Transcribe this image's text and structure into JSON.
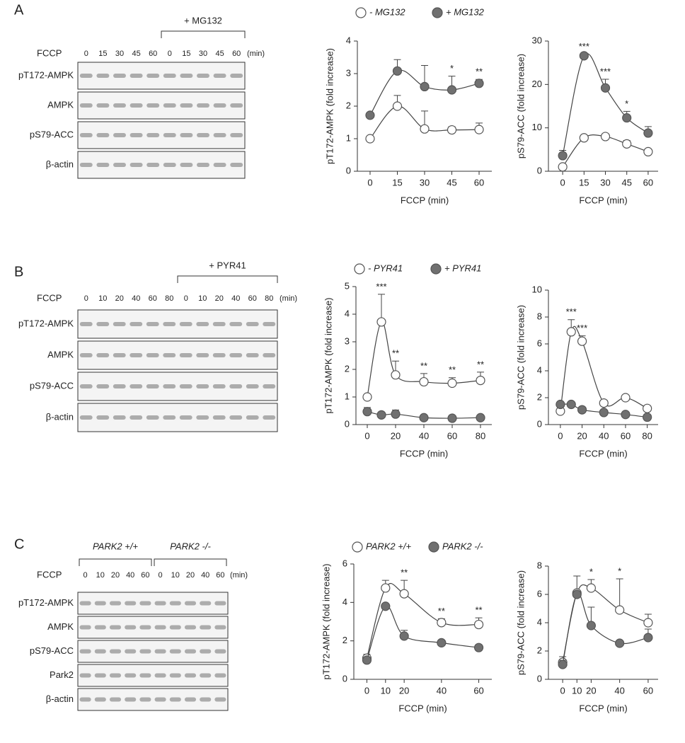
{
  "blots": [
    {
      "panel_label": "A",
      "treatment": "+ MG132",
      "fccp_label": "FCCP",
      "unit": "(min)",
      "lanes": [
        "0",
        "15",
        "30",
        "45",
        "60",
        "0",
        "15",
        "30",
        "45",
        "60"
      ],
      "rows": [
        "pT172-AMPK",
        "AMPK",
        "pS79-ACC",
        "β-actin"
      ]
    },
    {
      "panel_label": "B",
      "treatment": "+ PYR41",
      "fccp_label": "FCCP",
      "unit": "(min)",
      "lanes": [
        "0",
        "10",
        "20",
        "40",
        "60",
        "80",
        "0",
        "10",
        "20",
        "40",
        "60",
        "80"
      ],
      "rows": [
        "pT172-AMPK",
        "AMPK",
        "pS79-ACC",
        "β-actin"
      ]
    },
    {
      "panel_label": "C",
      "groups": [
        "PARK2 +/+",
        "PARK2 -/-"
      ],
      "fccp_label": "FCCP",
      "unit": "(min)",
      "lanes": [
        "0",
        "10",
        "20",
        "40",
        "60",
        "0",
        "10",
        "20",
        "40",
        "60"
      ],
      "rows": [
        "pT172-AMPK",
        "AMPK",
        "pS79-ACC",
        "Park2",
        "β-actin"
      ]
    }
  ],
  "chart_data": [
    {
      "type": "line",
      "y_label": "pT172-AMPK (fold increase)",
      "x_label": "FCCP (min)",
      "x": [
        0,
        15,
        30,
        45,
        60
      ],
      "xlim": [
        -7,
        67
      ],
      "xticks": [
        0,
        15,
        30,
        45,
        60
      ],
      "ylim": [
        0,
        4
      ],
      "yticks": [
        0,
        1,
        2,
        3,
        4
      ],
      "series": [
        {
          "name": "- MG132",
          "color": "#ffffff",
          "values": [
            1,
            2,
            1.3,
            1.27,
            1.28
          ],
          "errors": [
            0,
            0.33,
            0.55,
            0.1,
            0.2
          ]
        },
        {
          "name": "+ MG132",
          "color": "#707070",
          "values": [
            1.72,
            3.08,
            2.6,
            2.5,
            2.7
          ],
          "errors": [
            0,
            0.35,
            0.65,
            0.42,
            0.12
          ]
        }
      ],
      "annotations": [
        {
          "x": 45,
          "text": "*"
        },
        {
          "x": 60,
          "text": "**"
        }
      ]
    },
    {
      "type": "line",
      "y_label": "pS79-ACC (fold increase)",
      "x_label": "FCCP (min)",
      "x": [
        0,
        15,
        30,
        45,
        60
      ],
      "xlim": [
        -10,
        67
      ],
      "xticks": [
        0,
        15,
        30,
        45,
        60
      ],
      "ylim": [
        0,
        30
      ],
      "yticks": [
        0,
        10,
        20,
        30
      ],
      "series": [
        {
          "color": "#ffffff",
          "values": [
            1,
            7.7,
            8,
            6.3,
            4.5
          ],
          "errors": [
            0,
            0.5,
            0.4,
            0.8,
            0.5
          ]
        },
        {
          "color": "#707070",
          "values": [
            3.6,
            26.6,
            19.2,
            12.3,
            8.8
          ],
          "errors": [
            1.2,
            0.4,
            2,
            1.5,
            1.5
          ]
        }
      ],
      "annotations": [
        {
          "x": 15,
          "text": "***"
        },
        {
          "x": 30,
          "text": "***"
        },
        {
          "x": 45,
          "text": "*"
        }
      ]
    },
    {
      "type": "line",
      "y_label": "pT172-AMPK (fold increase)",
      "x_label": "FCCP (min)",
      "x": [
        0,
        10,
        20,
        40,
        60,
        80
      ],
      "xlim": [
        -8,
        88
      ],
      "xticks": [
        0,
        20,
        40,
        60,
        80
      ],
      "ylim": [
        0,
        5
      ],
      "yticks": [
        0,
        1,
        2,
        3,
        4,
        5
      ],
      "series": [
        {
          "name": "- PYR41",
          "color": "#ffffff",
          "values": [
            1,
            3.72,
            1.8,
            1.55,
            1.5,
            1.6
          ],
          "errors": [
            0,
            1,
            0.5,
            0.3,
            0.2,
            0.3
          ]
        },
        {
          "name": "+ PYR41",
          "color": "#707070",
          "values": [
            0.47,
            0.35,
            0.38,
            0.25,
            0.23,
            0.25
          ],
          "errors": [
            0.15,
            0.08,
            0.15,
            0,
            0,
            0
          ]
        }
      ],
      "annotations": [
        {
          "x": 10,
          "text": "***"
        },
        {
          "x": 20,
          "text": "**"
        },
        {
          "x": 40,
          "text": "**"
        },
        {
          "x": 60,
          "text": "**"
        },
        {
          "x": 80,
          "text": "**"
        }
      ]
    },
    {
      "type": "line",
      "y_label": "pS79-ACC (fold increase)",
      "x_label": "FCCP (min)",
      "x": [
        0,
        10,
        20,
        40,
        60,
        80
      ],
      "xlim": [
        -11,
        90
      ],
      "xticks": [
        0,
        20,
        40,
        60,
        80
      ],
      "ylim": [
        0,
        10
      ],
      "yticks": [
        0,
        2,
        4,
        6,
        8,
        10
      ],
      "series": [
        {
          "color": "#ffffff",
          "values": [
            1,
            6.9,
            6.2,
            1.6,
            2,
            1.2
          ],
          "errors": [
            0,
            0.9,
            0.4,
            0.2,
            0.2,
            0.2
          ]
        },
        {
          "color": "#707070",
          "values": [
            1.5,
            1.5,
            1.1,
            0.9,
            0.75,
            0.55
          ],
          "errors": [
            0,
            0,
            0,
            0,
            0,
            0
          ]
        }
      ],
      "annotations": [
        {
          "x": 10,
          "text": "***"
        },
        {
          "x": 20,
          "text": "***"
        }
      ]
    },
    {
      "type": "line",
      "y_label": "pT172-AMPK (fold increase)",
      "x_label": "FCCP (min)",
      "x": [
        0,
        10,
        20,
        40,
        60
      ],
      "xlim": [
        -7,
        67
      ],
      "xticks": [
        0,
        10,
        20,
        40,
        60
      ],
      "ylim": [
        0,
        6
      ],
      "yticks": [
        0,
        2,
        4,
        6
      ],
      "series": [
        {
          "name": "PARK2 +/+",
          "color": "#ffffff",
          "values": [
            1.1,
            4.75,
            4.45,
            2.95,
            2.85
          ],
          "errors": [
            0.2,
            0.4,
            0.7,
            0.2,
            0.35
          ]
        },
        {
          "name": "PARK2 -/-",
          "color": "#707070",
          "values": [
            1,
            3.8,
            2.25,
            1.9,
            1.65
          ],
          "errors": [
            0,
            0,
            0.3,
            0.1,
            0
          ]
        }
      ],
      "annotations": [
        {
          "x": 20,
          "text": "**"
        },
        {
          "x": 40,
          "text": "**"
        },
        {
          "x": 60,
          "text": "**"
        }
      ]
    },
    {
      "type": "line",
      "y_label": "pS79-ACC (fold increase)",
      "x_label": "FCCP (min)",
      "x": [
        0,
        10,
        20,
        40,
        60
      ],
      "xlim": [
        -10,
        67
      ],
      "xticks": [
        0,
        10,
        20,
        40,
        60
      ],
      "ylim": [
        0,
        8
      ],
      "yticks": [
        0,
        2,
        4,
        6,
        8
      ],
      "series": [
        {
          "color": "#ffffff",
          "values": [
            1.2,
            6.1,
            6.45,
            4.9,
            4
          ],
          "errors": [
            0.4,
            1.2,
            0.6,
            2.2,
            0.6
          ]
        },
        {
          "color": "#707070",
          "values": [
            1.05,
            6,
            3.8,
            2.55,
            2.95
          ],
          "errors": [
            0.3,
            0,
            1.3,
            0,
            0.6
          ]
        }
      ],
      "annotations": [
        {
          "x": 20,
          "text": "*"
        },
        {
          "x": 40,
          "text": "*"
        }
      ]
    }
  ]
}
